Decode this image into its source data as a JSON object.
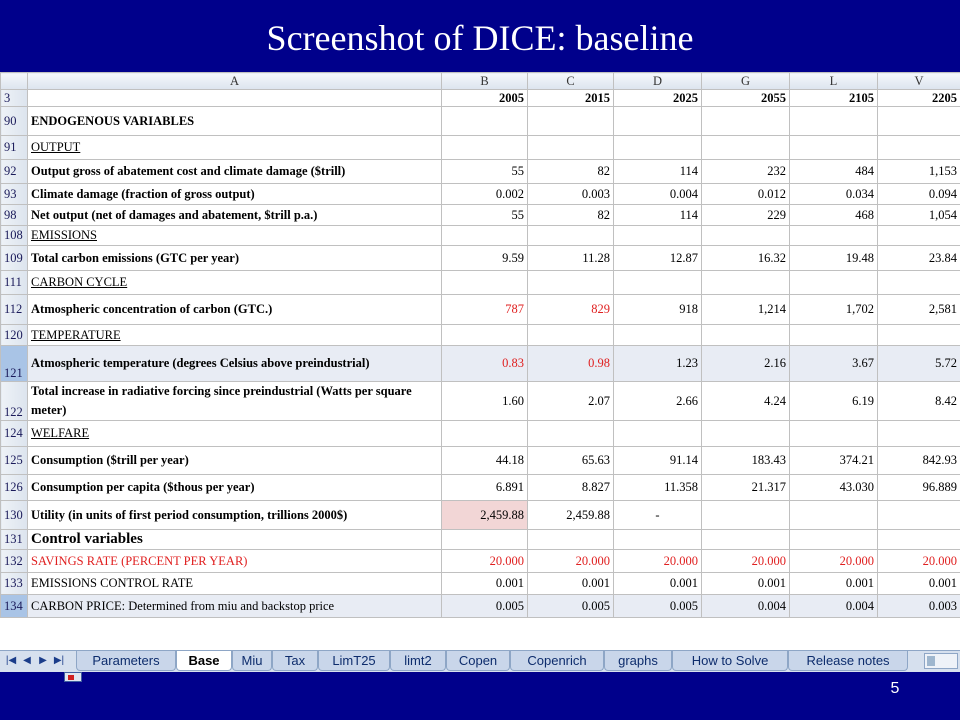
{
  "slide": {
    "title": "Screenshot of DICE: baseline",
    "page_number": "5"
  },
  "sheet": {
    "column_letters": [
      "A",
      "B",
      "C",
      "D",
      "G",
      "L",
      "V"
    ],
    "rows": [
      {
        "num": "3",
        "label": "",
        "values": [
          "2005",
          "2015",
          "2025",
          "2055",
          "2105",
          "2205"
        ]
      },
      {
        "num": "90",
        "label": "ENDOGENOUS VARIABLES",
        "values": [
          "",
          "",
          "",
          "",
          "",
          ""
        ]
      },
      {
        "num": "91",
        "label": "OUTPUT ",
        "values": [
          "",
          "",
          "",
          "",
          "",
          ""
        ]
      },
      {
        "num": "92",
        "label": "Output gross of abatement cost and climate damage ($trill)",
        "values": [
          "55",
          "82",
          "114",
          "232",
          "484",
          "1,153"
        ]
      },
      {
        "num": "93",
        "label": "Climate damage (fraction of gross output)",
        "values": [
          "0.002",
          "0.003",
          "0.004",
          "0.012",
          "0.034",
          "0.094"
        ]
      },
      {
        "num": "98",
        "label": "Net output (net of damages and abatement, $trill p.a.)",
        "values": [
          "55",
          "82",
          "114",
          "229",
          "468",
          "1,054"
        ]
      },
      {
        "num": "108",
        "label": "EMISSIONS",
        "values": [
          "",
          "",
          "",
          "",
          "",
          ""
        ]
      },
      {
        "num": "109",
        "label": "Total carbon emissions (GTC per year)",
        "values": [
          "9.59",
          "11.28",
          "12.87",
          "16.32",
          "19.48",
          "23.84"
        ]
      },
      {
        "num": "111",
        "label": "CARBON CYCLE",
        "values": [
          "",
          "",
          "",
          "",
          "",
          ""
        ]
      },
      {
        "num": "112",
        "label": "Atmospheric concentration of carbon (GTC.)",
        "values": [
          "787",
          "829",
          "918",
          "1,214",
          "1,702",
          "2,581"
        ]
      },
      {
        "num": "120",
        "label": "TEMPERATURE",
        "values": [
          "",
          "",
          "",
          "",
          "",
          ""
        ]
      },
      {
        "num": "121",
        "label": "Atmospheric temperature (degrees Celsius above preindustrial)",
        "values": [
          "0.83",
          "0.98",
          "1.23",
          "2.16",
          "3.67",
          "5.72"
        ]
      },
      {
        "num": "122",
        "label": "Total increase in radiative forcing since preindustrial (Watts per square meter)",
        "values": [
          "1.60",
          "2.07",
          "2.66",
          "4.24",
          "6.19",
          "8.42"
        ]
      },
      {
        "num": "124",
        "label": "WELFARE",
        "values": [
          "",
          "",
          "",
          "",
          "",
          ""
        ]
      },
      {
        "num": "125",
        "label": "Consumption ($trill per year)",
        "values": [
          "44.18",
          "65.63",
          "91.14",
          "183.43",
          "374.21",
          "842.93"
        ]
      },
      {
        "num": "126",
        "label": "Consumption per capita ($thous per year)",
        "values": [
          "6.891",
          "8.827",
          "11.358",
          "21.317",
          "43.030",
          "96.889"
        ]
      },
      {
        "num": "130",
        "label": "Utility (in units of first period consumption, trillions 2000$)",
        "values": [
          "2,459.88",
          "2,459.88",
          "-",
          "",
          "",
          ""
        ]
      },
      {
        "num": "131",
        "label": "Control variables",
        "values": [
          "",
          "",
          "",
          "",
          "",
          ""
        ]
      },
      {
        "num": "132",
        "label": "SAVINGS RATE (PERCENT PER YEAR)",
        "values": [
          "20.000",
          "20.000",
          "20.000",
          "20.000",
          "20.000",
          "20.000"
        ]
      },
      {
        "num": "133",
        "label": "EMISSIONS CONTROL RATE",
        "values": [
          "0.001",
          "0.001",
          "0.001",
          "0.001",
          "0.001",
          "0.001"
        ]
      },
      {
        "num": "134",
        "label": "CARBON PRICE: Determined from miu and backstop price",
        "values": [
          "0.005",
          "0.005",
          "0.005",
          "0.004",
          "0.004",
          "0.003"
        ]
      }
    ]
  },
  "tabbar": {
    "nav": [
      "|◀",
      "◀",
      "▶",
      "▶|"
    ],
    "tabs": [
      "Parameters",
      "Base",
      "Miu",
      "Tax",
      "LimT25",
      "limt2",
      "Copen",
      "Copenrich",
      "graphs",
      "How to Solve",
      "Release notes"
    ],
    "active_tab": "Base"
  },
  "colors": {
    "background": "#00008b",
    "red_value": "#e02020",
    "header_fill": "#dce4ee",
    "pink_cell": "#f2d6d6"
  }
}
